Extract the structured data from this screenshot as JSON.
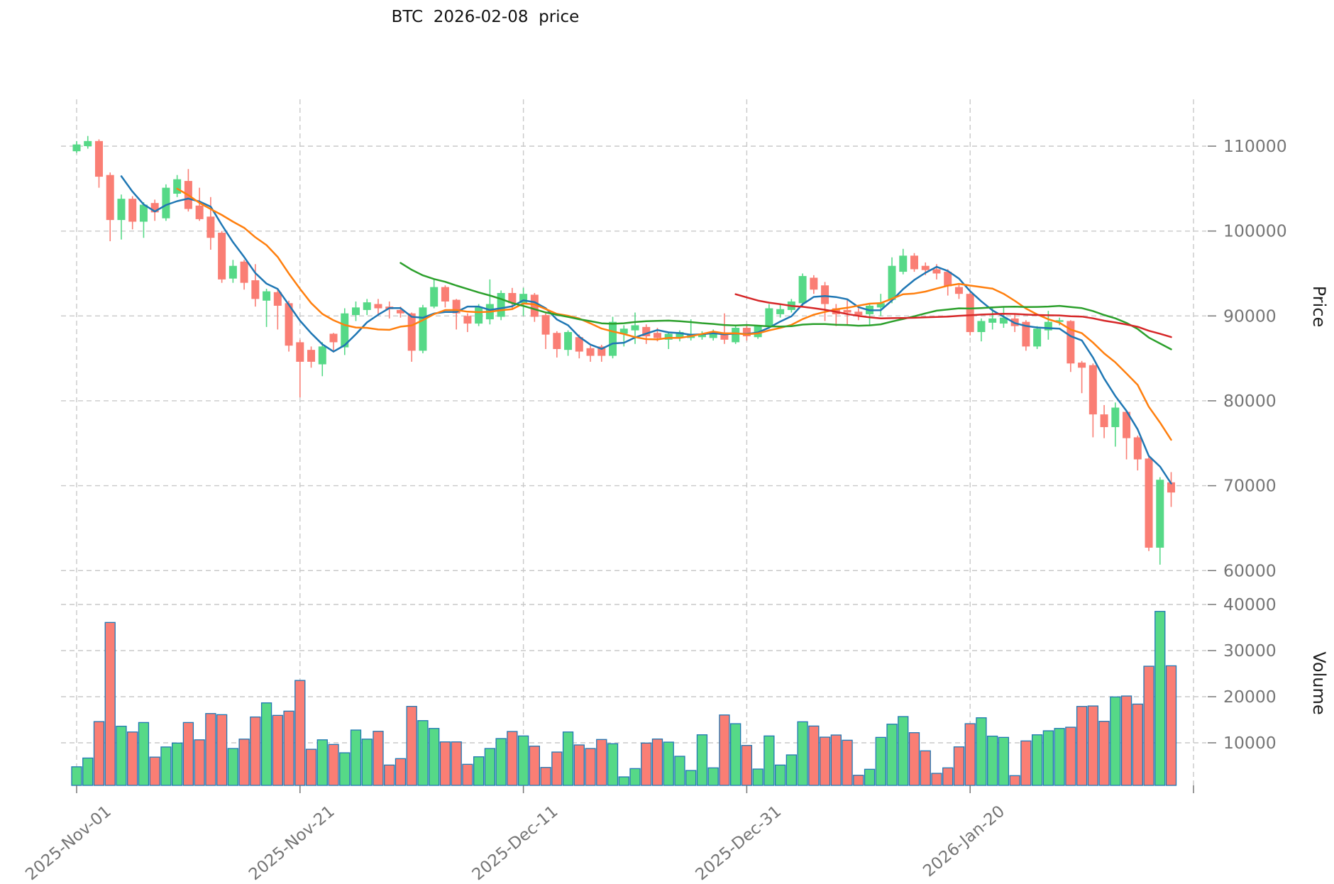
{
  "title": "BTC  2026-02-08  price",
  "colors": {
    "background": "#ffffff",
    "up": "#56d987",
    "down": "#fa7e74",
    "volume_edge": "#2077b4",
    "grid": "#c9c9c9",
    "tick_text": "#757575",
    "axis_text": "#1f1f1f",
    "title_text": "#111111",
    "sma_blue": "#1f77b4",
    "sma_orange": "#ff7f0e",
    "sma_green": "#2ca02c",
    "sma_red": "#d62728"
  },
  "chart_data": {
    "type": "candlestick_volume",
    "title": "BTC  2026-02-08  price",
    "x_ticks": [
      {
        "day": 0,
        "label": "2025-Nov-01"
      },
      {
        "day": 20,
        "label": "2025-Nov-21"
      },
      {
        "day": 40,
        "label": "2025-Dec-11"
      },
      {
        "day": 60,
        "label": "2025-Dec-31"
      },
      {
        "day": 80,
        "label": "2026-Jan-20"
      },
      {
        "day": 100,
        "label": ""
      }
    ],
    "price_axis": {
      "label": "Price",
      "ticks": [
        110000,
        100000,
        90000,
        80000,
        70000,
        60000
      ]
    },
    "volume_axis": {
      "label": "Volume",
      "ticks": [
        40000,
        30000,
        20000,
        10000
      ]
    },
    "moving_averages": [
      {
        "name": "sma-5",
        "window": 5,
        "color": "#1f77b4"
      },
      {
        "name": "sma-10",
        "window": 10,
        "color": "#ff7f0e"
      },
      {
        "name": "sma-30",
        "window": 30,
        "color": "#2ca02c"
      },
      {
        "name": "sma-60",
        "window": 60,
        "color": "#d62728"
      }
    ],
    "candles": {
      "columns": [
        "date",
        "open",
        "high",
        "low",
        "close",
        "volume"
      ],
      "rows": [
        [
          "2025-11-01",
          109400,
          110600,
          109200,
          110200,
          4800
        ],
        [
          "2025-11-02",
          110000,
          111200,
          109700,
          110600,
          6700
        ],
        [
          "2025-11-03",
          110600,
          110800,
          105100,
          106400,
          14600
        ],
        [
          "2025-11-04",
          106600,
          106900,
          98800,
          101300,
          36100
        ],
        [
          "2025-11-05",
          101300,
          104300,
          99000,
          103800,
          13600
        ],
        [
          "2025-11-06",
          103800,
          104100,
          100200,
          101100,
          12350
        ],
        [
          "2025-11-07",
          101100,
          103400,
          99200,
          103100,
          14400
        ],
        [
          "2025-11-08",
          103300,
          103700,
          101200,
          102200,
          6900
        ],
        [
          "2025-11-09",
          101500,
          105500,
          101200,
          105100,
          9100
        ],
        [
          "2025-11-10",
          104400,
          106600,
          104000,
          106100,
          9950
        ],
        [
          "2025-11-11",
          105900,
          107300,
          102300,
          102600,
          14400
        ],
        [
          "2025-11-12",
          103000,
          105100,
          101200,
          101400,
          10650
        ],
        [
          "2025-11-13",
          101700,
          104000,
          97800,
          99200,
          16350
        ],
        [
          "2025-11-14",
          99800,
          100000,
          93900,
          94300,
          16100
        ],
        [
          "2025-11-15",
          94400,
          96600,
          93900,
          95900,
          8770
        ],
        [
          "2025-11-16",
          96400,
          96600,
          93100,
          93900,
          10800
        ],
        [
          "2025-11-17",
          94200,
          96100,
          91100,
          92000,
          15600
        ],
        [
          "2025-11-18",
          91800,
          93200,
          88700,
          92900,
          18660
        ],
        [
          "2025-11-19",
          92800,
          93100,
          88400,
          91200,
          15950
        ],
        [
          "2025-11-20",
          91500,
          91800,
          85800,
          86500,
          16870
        ],
        [
          "2025-11-21",
          86900,
          87200,
          80400,
          84600,
          23530
        ],
        [
          "2025-11-22",
          86000,
          86400,
          83900,
          84600,
          8600
        ],
        [
          "2025-11-23",
          84300,
          86900,
          82900,
          86400,
          10650
        ],
        [
          "2025-11-24",
          87900,
          88000,
          85700,
          86900,
          9640
        ],
        [
          "2025-11-25",
          86300,
          90900,
          85400,
          90300,
          7840
        ],
        [
          "2025-11-26",
          90100,
          91700,
          89400,
          91000,
          12770
        ],
        [
          "2025-11-27",
          90700,
          92000,
          90100,
          91600,
          10800
        ],
        [
          "2025-11-28",
          91400,
          92000,
          90000,
          90900,
          12500
        ],
        [
          "2025-11-29",
          91100,
          91700,
          89700,
          90800,
          5180
        ],
        [
          "2025-11-30",
          90700,
          91100,
          89800,
          90300,
          6570
        ],
        [
          "2025-12-01",
          90300,
          90400,
          84600,
          85900,
          17900
        ],
        [
          "2025-12-02",
          85900,
          91300,
          85600,
          91000,
          14810
        ],
        [
          "2025-12-03",
          91100,
          94300,
          90900,
          93400,
          13120
        ],
        [
          "2025-12-04",
          93400,
          93600,
          91000,
          91700,
          10200
        ],
        [
          "2025-12-05",
          91900,
          92000,
          88400,
          90300,
          10200
        ],
        [
          "2025-12-06",
          90000,
          90300,
          88100,
          89100,
          5340
        ],
        [
          "2025-12-07",
          89100,
          91400,
          88800,
          91000,
          6970
        ],
        [
          "2025-12-08",
          89600,
          94300,
          89000,
          91400,
          8770
        ],
        [
          "2025-12-09",
          89900,
          93000,
          89500,
          92700,
          10920
        ],
        [
          "2025-12-10",
          92700,
          93300,
          90700,
          91500,
          12460
        ],
        [
          "2025-12-11",
          91500,
          93300,
          90000,
          92600,
          11490
        ],
        [
          "2025-12-12",
          92500,
          92700,
          89300,
          89900,
          9280
        ],
        [
          "2025-12-13",
          90100,
          90300,
          86100,
          87800,
          4660
        ],
        [
          "2025-12-14",
          88000,
          88200,
          85100,
          86100,
          8000
        ],
        [
          "2025-12-15",
          86000,
          88300,
          85300,
          88100,
          12350
        ],
        [
          "2025-12-16",
          87500,
          87800,
          85000,
          85800,
          9540
        ],
        [
          "2025-12-17",
          86200,
          86500,
          84600,
          85300,
          8770
        ],
        [
          "2025-12-18",
          86400,
          86600,
          84600,
          85300,
          10720
        ],
        [
          "2025-12-19",
          85300,
          89900,
          85000,
          89300,
          9800
        ],
        [
          "2025-12-20",
          87900,
          88900,
          86400,
          88500,
          2610
        ],
        [
          "2025-12-21",
          88300,
          90400,
          86700,
          88900,
          4410
        ],
        [
          "2025-12-22",
          88700,
          89000,
          86700,
          87600,
          9950
        ],
        [
          "2025-12-23",
          88000,
          88600,
          87000,
          87400,
          10820
        ],
        [
          "2025-12-24",
          87200,
          88000,
          86100,
          87900,
          10150
        ],
        [
          "2025-12-25",
          87400,
          88300,
          87000,
          88100,
          7080
        ],
        [
          "2025-12-26",
          87400,
          89600,
          87100,
          87900,
          4000
        ],
        [
          "2025-12-27",
          87500,
          88200,
          87200,
          87900,
          11740
        ],
        [
          "2025-12-28",
          87400,
          88400,
          87100,
          88050,
          4570
        ],
        [
          "2025-12-29",
          88050,
          90300,
          86700,
          87200,
          16040
        ],
        [
          "2025-12-30",
          86900,
          88800,
          86700,
          88600,
          14150
        ],
        [
          "2025-12-31",
          88600,
          88900,
          87100,
          87600,
          9430
        ],
        [
          "2026-01-01",
          87500,
          88900,
          87300,
          88800,
          4310
        ],
        [
          "2026-01-02",
          88800,
          91400,
          88500,
          90900,
          11490
        ],
        [
          "2026-01-03",
          90200,
          91400,
          89800,
          90800,
          5180
        ],
        [
          "2026-01-04",
          90700,
          92000,
          90400,
          91700,
          7380
        ],
        [
          "2026-01-05",
          91500,
          95000,
          91100,
          94700,
          14560
        ],
        [
          "2026-01-06",
          94500,
          94800,
          92600,
          93100,
          13640
        ],
        [
          "2026-01-07",
          93600,
          94000,
          89400,
          91400,
          11230
        ],
        [
          "2026-01-08",
          90900,
          91400,
          88800,
          90200,
          11690
        ],
        [
          "2026-01-09",
          90700,
          92000,
          88900,
          90400,
          10560
        ],
        [
          "2026-01-10",
          90500,
          90900,
          89500,
          90100,
          2970
        ],
        [
          "2026-01-11",
          90200,
          91400,
          88900,
          91200,
          4260
        ],
        [
          "2026-01-12",
          91000,
          92600,
          90000,
          91500,
          11180
        ],
        [
          "2026-01-13",
          91900,
          96900,
          91500,
          95900,
          14050
        ],
        [
          "2026-01-14",
          95200,
          97900,
          94900,
          97100,
          15690
        ],
        [
          "2026-01-15",
          97100,
          97400,
          95200,
          95500,
          12200
        ],
        [
          "2026-01-16",
          95900,
          96300,
          94800,
          95400,
          8260
        ],
        [
          "2026-01-17",
          95500,
          96100,
          94300,
          95000,
          3380
        ],
        [
          "2026-01-18",
          95200,
          95500,
          92400,
          93500,
          4570
        ],
        [
          "2026-01-19",
          93400,
          93700,
          92000,
          92600,
          9120
        ],
        [
          "2026-01-20",
          92600,
          92800,
          87700,
          88100,
          14150
        ],
        [
          "2026-01-21",
          88100,
          89700,
          87000,
          89400,
          15430
        ],
        [
          "2026-01-22",
          89200,
          90900,
          88400,
          89700,
          11450
        ],
        [
          "2026-01-23",
          89100,
          91100,
          88600,
          89800,
          11180
        ],
        [
          "2026-01-24",
          89700,
          90200,
          88100,
          88800,
          2880
        ],
        [
          "2026-01-25",
          89300,
          89500,
          85900,
          86400,
          10410
        ],
        [
          "2026-01-26",
          86400,
          88800,
          86100,
          88500,
          11740
        ],
        [
          "2026-01-27",
          88300,
          90600,
          87200,
          89300,
          12610
        ],
        [
          "2026-01-28",
          89300,
          89800,
          88900,
          89500,
          13120
        ],
        [
          "2026-01-29",
          89400,
          89500,
          83400,
          84400,
          13380
        ],
        [
          "2026-01-30",
          84500,
          84700,
          80900,
          83900,
          17890
        ],
        [
          "2026-01-31",
          84200,
          84400,
          75700,
          78400,
          17990
        ],
        [
          "2026-02-01",
          78400,
          79500,
          75600,
          76900,
          14660
        ],
        [
          "2026-02-02",
          76900,
          79800,
          74600,
          79200,
          19950
        ],
        [
          "2026-02-03",
          78700,
          78900,
          73100,
          75600,
          20150
        ],
        [
          "2026-02-04",
          75700,
          75900,
          71800,
          73100,
          18400
        ],
        [
          "2026-02-05",
          73200,
          73400,
          62300,
          62700,
          26610
        ],
        [
          "2026-02-06",
          62700,
          71000,
          60700,
          70700,
          38500
        ],
        [
          "2026-02-07",
          70400,
          71600,
          67500,
          69200,
          26700
        ]
      ]
    }
  }
}
